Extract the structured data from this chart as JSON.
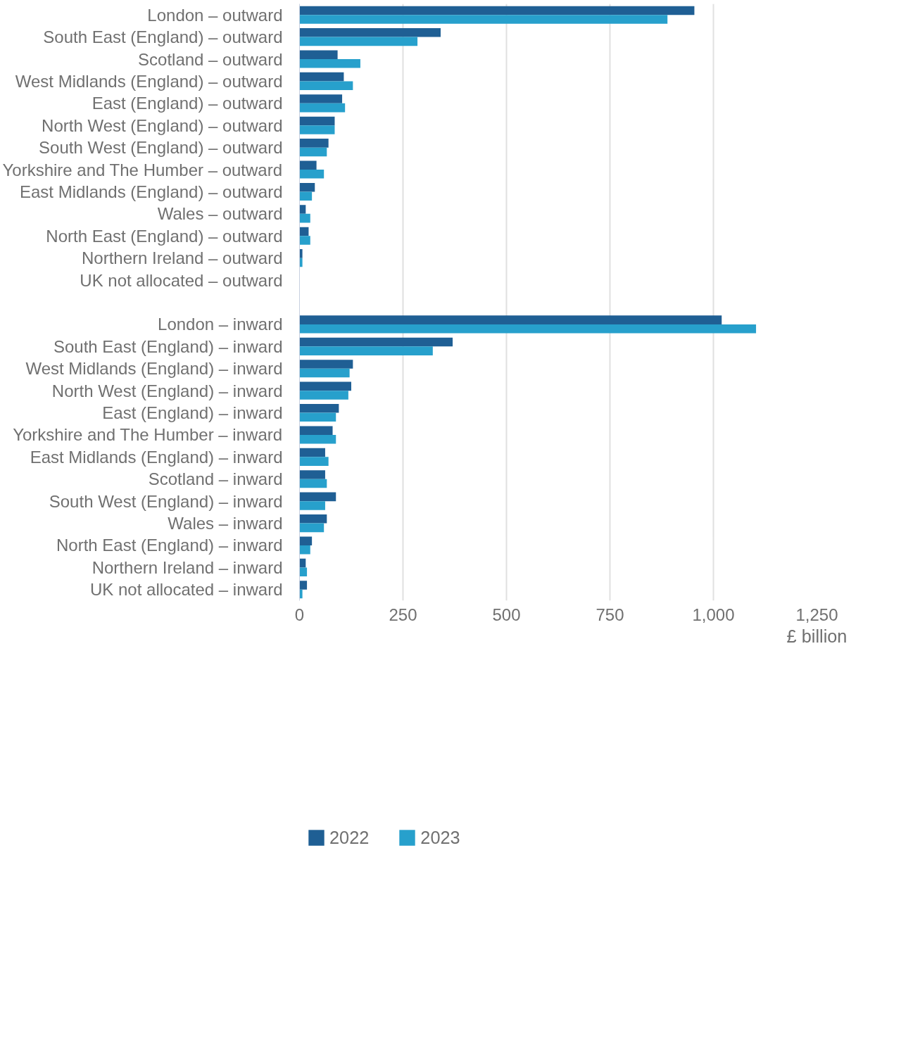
{
  "chart_data": {
    "type": "bar",
    "orientation": "horizontal",
    "categories": [
      "London – outward",
      "South East (England) – outward",
      "Scotland – outward",
      "West Midlands (England) – outward",
      "East (England) – outward",
      "North West (England) – outward",
      "South West (England) – outward",
      "Yorkshire and The Humber – outward",
      "East Midlands (England) – outward",
      "Wales – outward",
      "North East (England) – outward",
      "Northern Ireland – outward",
      "UK not allocated – outward",
      null,
      "London – inward",
      "South East (England) – inward",
      "West Midlands (England) – inward",
      "North West (England) – inward",
      "East (England) – inward",
      "Yorkshire and The Humber – inward",
      "East Midlands (England) – inward",
      "Scotland – inward",
      "South West (England) – inward",
      "Wales – inward",
      "North East (England) – inward",
      "Northern Ireland – inward",
      "UK not allocated – inward"
    ],
    "series": [
      {
        "name": "2022",
        "color": "#1f5f94",
        "values": [
          954,
          341,
          92,
          107,
          103,
          85,
          70,
          41,
          37,
          15,
          22,
          7,
          null,
          null,
          1020,
          370,
          129,
          125,
          95,
          80,
          62,
          62,
          88,
          66,
          30,
          15,
          18
        ]
      },
      {
        "name": "2023",
        "color": "#27a0cc",
        "values": [
          889,
          285,
          147,
          129,
          110,
          85,
          66,
          59,
          30,
          26,
          26,
          7,
          null,
          null,
          1103,
          322,
          121,
          118,
          88,
          88,
          70,
          66,
          62,
          59,
          26,
          18,
          7
        ]
      }
    ],
    "xlim": [
      0,
      1250
    ],
    "xticks": [
      0,
      250,
      500,
      750,
      {
        "value": 1000,
        "label": "1,000"
      },
      {
        "value": 1250,
        "label": "1,250"
      }
    ],
    "xlabel": "£ billion",
    "grid": "x",
    "legend": "bottom"
  }
}
